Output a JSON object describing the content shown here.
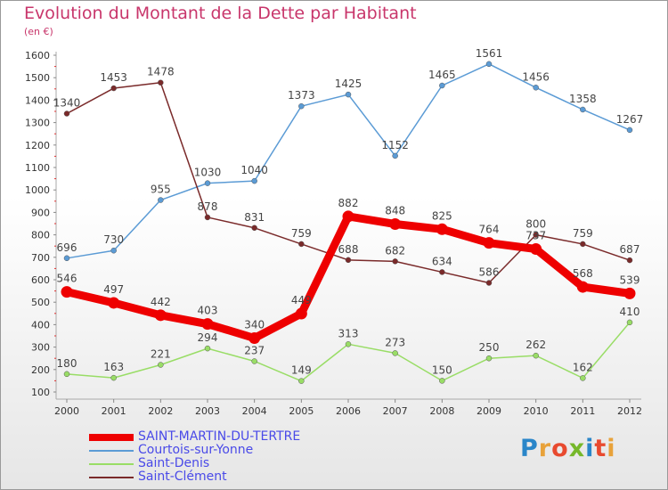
{
  "chart_data": {
    "type": "line",
    "title": "Evolution du Montant de la Dette par Habitant",
    "subtitle": "(en €)",
    "xlabel": "",
    "ylabel": "",
    "x": [
      "2000",
      "2001",
      "2002",
      "2003",
      "2004",
      "2005",
      "2006",
      "2007",
      "2008",
      "2009",
      "2010",
      "2011",
      "2012"
    ],
    "ylim": [
      100,
      1600
    ],
    "yticks": [
      100,
      200,
      300,
      400,
      500,
      600,
      700,
      800,
      900,
      1000,
      1100,
      1200,
      1300,
      1400,
      1500,
      1600
    ],
    "grid": false,
    "legend_position": "bottom-left",
    "series": [
      {
        "name": "SAINT-MARTIN-DU-TERTRE",
        "color": "#ee0000",
        "emphasis": true,
        "values": [
          546,
          497,
          442,
          403,
          340,
          449,
          882,
          848,
          825,
          764,
          737,
          568,
          539
        ],
        "labels": [
          "546",
          "497",
          "442",
          "403",
          "340",
          "449",
          "882",
          "848",
          "825",
          "764",
          "737",
          "568",
          "539"
        ]
      },
      {
        "name": "Courtois-sur-Yonne",
        "color": "#5b9bd5",
        "values": [
          696,
          730,
          955,
          1030,
          1040,
          1373,
          1425,
          1152,
          1465,
          1561,
          1456,
          1358,
          1267
        ],
        "labels": [
          "696",
          "730",
          "955",
          "1030",
          "1040",
          "1373",
          "1425",
          "1152",
          "1465",
          "1561",
          "1456",
          "1358",
          "1267"
        ]
      },
      {
        "name": "Saint-Denis",
        "color": "#99dd66",
        "values": [
          180,
          163,
          221,
          294,
          237,
          149,
          313,
          273,
          150,
          250,
          262,
          162,
          410
        ],
        "labels": [
          "180",
          "163",
          "221",
          "294",
          "237",
          "149",
          "313",
          "273",
          "150",
          "250",
          "262",
          "162",
          "410"
        ]
      },
      {
        "name": "Saint-Clément",
        "color": "#7a2a2a",
        "values": [
          1340,
          1453,
          1478,
          878,
          831,
          759,
          688,
          682,
          634,
          586,
          800,
          759,
          687
        ],
        "labels": [
          "1340",
          "1453",
          "1478",
          "878",
          "831",
          "759",
          "688",
          "682",
          "634",
          "586",
          "800",
          "759",
          "687"
        ]
      }
    ]
  },
  "logo": {
    "text_letters": [
      "P",
      "r",
      "o",
      "x",
      "i",
      "t",
      "i"
    ]
  }
}
